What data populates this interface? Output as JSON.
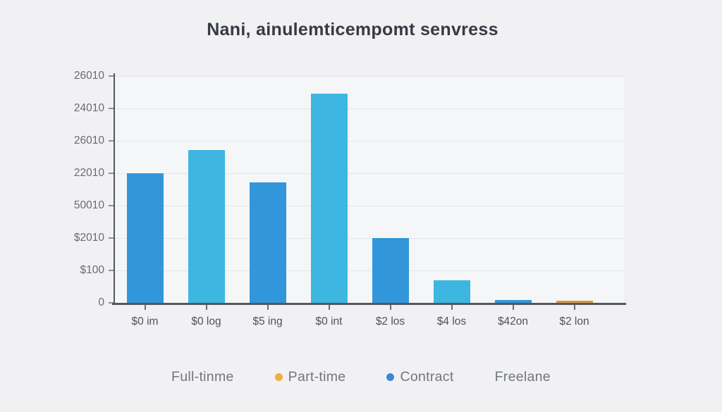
{
  "chart_data": {
    "type": "bar",
    "title": "Nani, ainulemticempomt senvress",
    "categories": [
      "$0 im",
      "$0 log",
      "$5 ing",
      "$0 int",
      "$2 los",
      "$4 los",
      "$42on",
      "$2 lon"
    ],
    "values": [
      4.0,
      4.72,
      3.72,
      6.45,
      2.0,
      0.7,
      0.09,
      0.07
    ],
    "bar_colors": [
      "#3196da",
      "#3eb6e2",
      "#3196da",
      "#3eb6e2",
      "#3196da",
      "#3eb6e2",
      "#3196da",
      "#d79a40"
    ],
    "ylim": [
      0,
      7
    ],
    "ytick_labels_bottom_to_top": [
      "0",
      "$100",
      "$2010",
      "50010",
      "22010",
      "26010",
      "24010",
      "26010"
    ],
    "grid": true,
    "legend_position": "bottom",
    "legend": [
      {
        "label": "Full-tinme",
        "dot_color": null
      },
      {
        "label": "Part-time",
        "dot_color": "#efae40"
      },
      {
        "label": "Contract",
        "dot_color": "#3c86d8"
      },
      {
        "label": "Freelane",
        "dot_color": null
      }
    ]
  },
  "colors": {
    "background": "#f1f1f3",
    "plot_background": "#f5f6f7",
    "grid_line": "#e5e5e8",
    "axis": "#54575b",
    "title_text": "#363b43",
    "ytick_text": "#676c74",
    "xtick_text": "#4d535c",
    "legend_text": "#71767f"
  }
}
